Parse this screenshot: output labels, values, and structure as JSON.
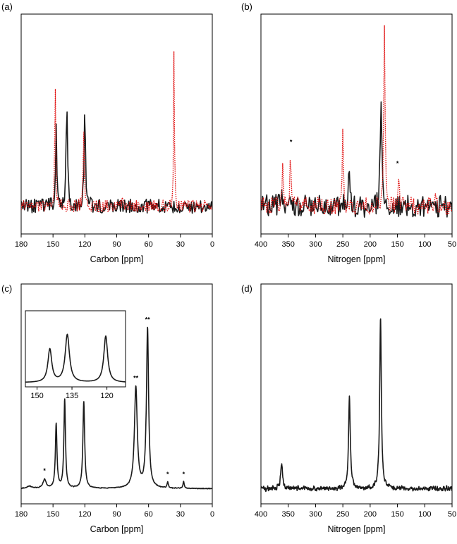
{
  "chart_data": [
    {
      "panel": "(a)",
      "type": "line",
      "xlabel": "Carbon [ppm]",
      "xlim": [
        180,
        0
      ],
      "xticks": [
        180,
        150,
        120,
        90,
        60,
        30,
        0
      ],
      "series": [
        {
          "style": "solid",
          "color": "#1a1a1a",
          "noise_level": 0.08,
          "baseline": 0.1,
          "peaks": [
            [
              147,
              0.5,
              0.6
            ],
            [
              137,
              0.61,
              0.7
            ],
            [
              120,
              0.53,
              0.8
            ]
          ]
        },
        {
          "style": "dotted",
          "color": "#e01010",
          "noise_level": 0.07,
          "baseline": 0.1,
          "peaks": [
            [
              148,
              0.77,
              0.5
            ],
            [
              121,
              0.43,
              0.6
            ],
            [
              85,
              0.06,
              0.5
            ],
            [
              178,
              0.05,
              0.5
            ],
            [
              36,
              0.97,
              0.45
            ]
          ]
        }
      ],
      "annotations": []
    },
    {
      "panel": "(b)",
      "type": "line",
      "xlabel": "Nitrogen [ppm]",
      "xlim": [
        400,
        50
      ],
      "xticks": [
        400,
        350,
        300,
        250,
        200,
        150,
        100,
        50
      ],
      "series": [
        {
          "style": "solid",
          "color": "#1a1a1a",
          "noise_level": 0.13,
          "baseline": 0.1,
          "peaks": [
            [
              180,
              0.55,
              1.8
            ],
            [
              238,
              0.25,
              1.6
            ],
            [
              362,
              0.1,
              2
            ]
          ]
        },
        {
          "style": "dotted",
          "color": "#e01010",
          "noise_level": 0.1,
          "baseline": 0.1,
          "peaks": [
            [
              174,
              1.0,
              1.5
            ],
            [
              250,
              0.4,
              1.2
            ],
            [
              360,
              0.3,
              1.2
            ],
            [
              346,
              0.3,
              1.1
            ],
            [
              148,
              0.17,
              1.3
            ],
            [
              80,
              0.08,
              1.3
            ]
          ]
        }
      ],
      "annotations": [
        {
          "x": 345,
          "y": 0.45,
          "text": "*"
        },
        {
          "x": 150,
          "y": 0.33,
          "text": "*"
        }
      ]
    },
    {
      "panel": "(c)",
      "type": "line",
      "xlabel": "Carbon [ppm]",
      "xlim": [
        180,
        0
      ],
      "xticks": [
        180,
        150,
        120,
        90,
        60,
        30,
        0
      ],
      "series": [
        {
          "style": "solid",
          "color": "#1a1a1a",
          "noise_level": 0.003,
          "baseline": 0.03,
          "peaks": [
            [
              158,
              0.05,
              1.8
            ],
            [
              147,
              0.36,
              0.9
            ],
            [
              139,
              0.5,
              0.9
            ],
            [
              121,
              0.49,
              1.0
            ],
            [
              72,
              0.57,
              1.6
            ],
            [
              61,
              0.9,
              1.2
            ],
            [
              42,
              0.035,
              0.7
            ],
            [
              27,
              0.04,
              0.7
            ],
            [
              172,
              0.013,
              2.5
            ]
          ]
        }
      ],
      "annotations": [
        {
          "x": 158,
          "y": 0.12,
          "text": "*"
        },
        {
          "x": 72,
          "y": 0.64,
          "text": "**"
        },
        {
          "x": 61,
          "y": 0.97,
          "text": "**"
        },
        {
          "x": 42,
          "y": 0.1,
          "text": "*"
        },
        {
          "x": 27,
          "y": 0.1,
          "text": "*"
        }
      ],
      "inset": {
        "xlim": [
          155,
          112
        ],
        "xticks": [
          150,
          135,
          120
        ],
        "peaks": [
          [
            144.5,
            0.5,
            1.0
          ],
          [
            137,
            0.72,
            1.1
          ],
          [
            120.5,
            0.7,
            1.0
          ]
        ]
      }
    },
    {
      "panel": "(d)",
      "type": "line",
      "xlabel": "Nitrogen [ppm]",
      "xlim": [
        400,
        50
      ],
      "xticks": [
        400,
        350,
        300,
        250,
        200,
        150,
        100,
        50
      ],
      "series": [
        {
          "style": "solid",
          "color": "#1a1a1a",
          "noise_level": 0.018,
          "baseline": 0.03,
          "peaks": [
            [
              362,
              0.14,
              2.2
            ],
            [
              238,
              0.52,
              1.9
            ],
            [
              181,
              0.97,
              1.8
            ]
          ]
        }
      ],
      "annotations": []
    }
  ]
}
